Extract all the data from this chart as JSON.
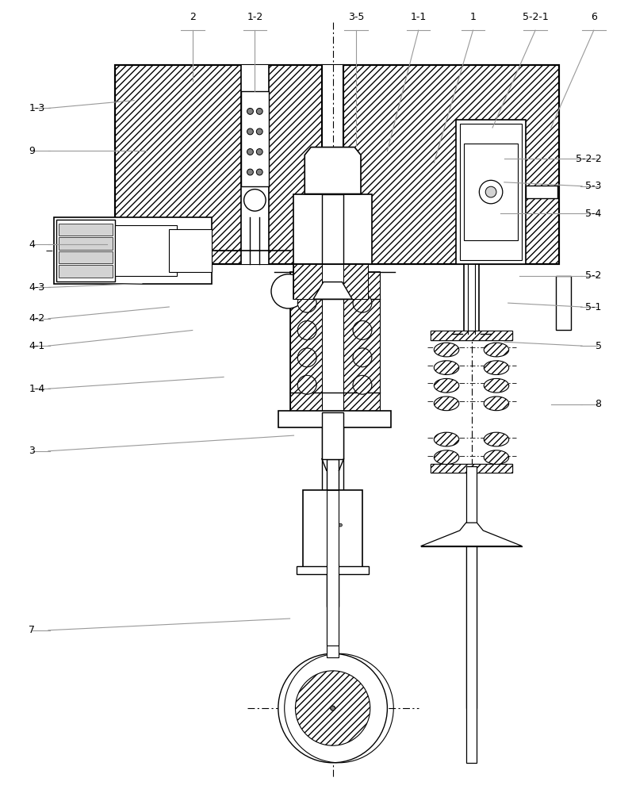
{
  "bg_color": "#ffffff",
  "line_color": "#000000",
  "leader_color": "#999999",
  "fig_width": 7.97,
  "fig_height": 10.0
}
